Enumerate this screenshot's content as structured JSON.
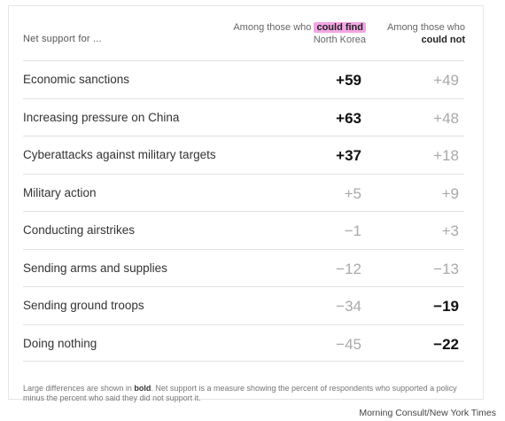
{
  "chart_data": {
    "type": "table",
    "row_header": "Net support for ...",
    "columns": [
      {
        "pre": "Among those who",
        "key": "could find",
        "post": "North Korea"
      },
      {
        "pre": "Among those who",
        "key": "could not",
        "post": ""
      }
    ],
    "rows": [
      {
        "label": "Economic sanctions",
        "values": [
          "+59",
          "+49"
        ],
        "bold": [
          true,
          false
        ]
      },
      {
        "label": "Increasing pressure on China",
        "values": [
          "+63",
          "+48"
        ],
        "bold": [
          true,
          false
        ]
      },
      {
        "label": "Cyberattacks against military targets",
        "values": [
          "+37",
          "+18"
        ],
        "bold": [
          true,
          false
        ]
      },
      {
        "label": "Military action",
        "values": [
          "+5",
          "+9"
        ],
        "bold": [
          false,
          false
        ]
      },
      {
        "label": "Conducting airstrikes",
        "values": [
          "−1",
          "+3"
        ],
        "bold": [
          false,
          false
        ]
      },
      {
        "label": "Sending arms and supplies",
        "values": [
          "−12",
          "−13"
        ],
        "bold": [
          false,
          false
        ]
      },
      {
        "label": "Sending ground troops",
        "values": [
          "−34",
          "−19"
        ],
        "bold": [
          false,
          true
        ]
      },
      {
        "label": "Doing nothing",
        "values": [
          "−45",
          "−22"
        ],
        "bold": [
          false,
          true
        ]
      }
    ],
    "note": {
      "pre": "Large differences are shown in ",
      "bold_word": "bold",
      "post": ". Net support is a measure showing the percent of respondents who supported a policy minus the percent who said they did not support it."
    },
    "source": "Morning Consult/New York Times"
  }
}
